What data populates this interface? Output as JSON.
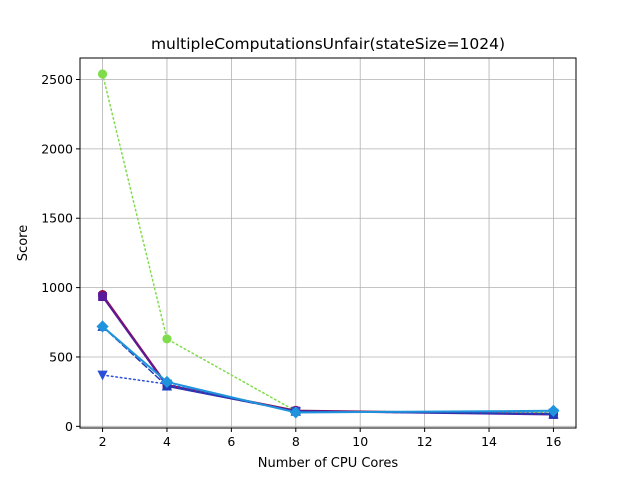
{
  "chart_data": {
    "type": "line",
    "title": "multipleComputationsUnfair(stateSize=1024)",
    "xlabel": "Number of CPU Cores",
    "ylabel": "Score",
    "xlim": [
      1.3,
      16.7
    ],
    "ylim": [
      -12,
      2655
    ],
    "xticks": [
      2,
      4,
      6,
      8,
      10,
      12,
      14,
      16
    ],
    "yticks": [
      0,
      500,
      1000,
      1500,
      2000,
      2500
    ],
    "grid": true,
    "series": [
      {
        "color": "#7fdc4a",
        "marker": "circle",
        "dash": "dotted",
        "width": 1.5,
        "x": [
          2,
          4,
          8,
          16
        ],
        "y": [
          2540,
          630,
          110,
          100
        ]
      },
      {
        "color": "#8b0f4f",
        "marker": "circle",
        "dash": "solid",
        "width": 1.5,
        "x": [
          2,
          4,
          8,
          16
        ],
        "y": [
          950,
          300,
          115,
          90
        ]
      },
      {
        "color": "#5a1a9c",
        "marker": "square",
        "dash": "solid",
        "width": 1.8,
        "x": [
          2,
          4,
          8,
          16
        ],
        "y": [
          935,
          290,
          110,
          85
        ]
      },
      {
        "color": "#2a4fd8",
        "marker": "triangle-down",
        "dash": "dotted",
        "width": 1.5,
        "x": [
          2,
          4,
          8,
          16
        ],
        "y": [
          370,
          305,
          105,
          95
        ]
      },
      {
        "color": "#1f3fb8",
        "marker": "triangle-up",
        "dash": "dashed",
        "width": 1.5,
        "x": [
          2,
          4,
          8,
          16
        ],
        "y": [
          720,
          290,
          108,
          88
        ]
      },
      {
        "color": "#1f94dc",
        "marker": "diamond",
        "dash": "solid",
        "width": 2.0,
        "x": [
          2,
          4,
          8,
          16
        ],
        "y": [
          720,
          320,
          100,
          112
        ]
      }
    ]
  }
}
